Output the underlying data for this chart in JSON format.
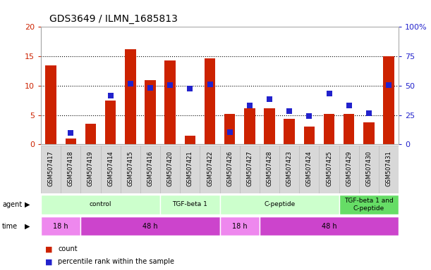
{
  "title": "GDS3649 / ILMN_1685813",
  "samples": [
    "GSM507417",
    "GSM507418",
    "GSM507419",
    "GSM507414",
    "GSM507415",
    "GSM507416",
    "GSM507420",
    "GSM507421",
    "GSM507422",
    "GSM507426",
    "GSM507427",
    "GSM507428",
    "GSM507423",
    "GSM507424",
    "GSM507425",
    "GSM507429",
    "GSM507430",
    "GSM507431"
  ],
  "counts": [
    13.5,
    1.0,
    3.5,
    7.5,
    16.2,
    11.0,
    14.3,
    1.5,
    14.7,
    5.2,
    6.2,
    6.2,
    4.4,
    3.1,
    5.2,
    5.2,
    3.8,
    15.0
  ],
  "percentiles": [
    null,
    10.0,
    null,
    41.5,
    52.0,
    48.0,
    50.5,
    47.5,
    51.0,
    10.5,
    33.0,
    38.5,
    28.5,
    24.0,
    43.5,
    33.0,
    26.5,
    50.5
  ],
  "bar_color": "#cc2200",
  "dot_color": "#2222cc",
  "left_ylim": [
    0,
    20
  ],
  "right_ylim": [
    0,
    100
  ],
  "left_yticks": [
    0,
    5,
    10,
    15,
    20
  ],
  "right_yticks": [
    0,
    25,
    50,
    75,
    100
  ],
  "right_yticklabels": [
    "0",
    "25",
    "50",
    "75",
    "100%"
  ],
  "agent_groups": [
    {
      "label": "control",
      "start": 0,
      "end": 6,
      "color": "#ccffcc"
    },
    {
      "label": "TGF-beta 1",
      "start": 6,
      "end": 9,
      "color": "#ccffcc"
    },
    {
      "label": "C-peptide",
      "start": 9,
      "end": 15,
      "color": "#ccffcc"
    },
    {
      "label": "TGF-beta 1 and\nC-peptide",
      "start": 15,
      "end": 18,
      "color": "#66dd66"
    }
  ],
  "time_groups": [
    {
      "label": "18 h",
      "start": 0,
      "end": 2,
      "color": "#ee88ee"
    },
    {
      "label": "48 h",
      "start": 2,
      "end": 9,
      "color": "#cc44cc"
    },
    {
      "label": "18 h",
      "start": 9,
      "end": 11,
      "color": "#ee88ee"
    },
    {
      "label": "48 h",
      "start": 11,
      "end": 18,
      "color": "#cc44cc"
    }
  ],
  "bar_width": 0.55,
  "dot_size": 40,
  "gridline_color": "#000000",
  "tick_label_color_left": "#cc2200",
  "tick_label_color_right": "#2222cc",
  "title_fontsize": 10,
  "sample_box_color": "#d8d8d8",
  "sample_box_border": "#bbbbbb"
}
